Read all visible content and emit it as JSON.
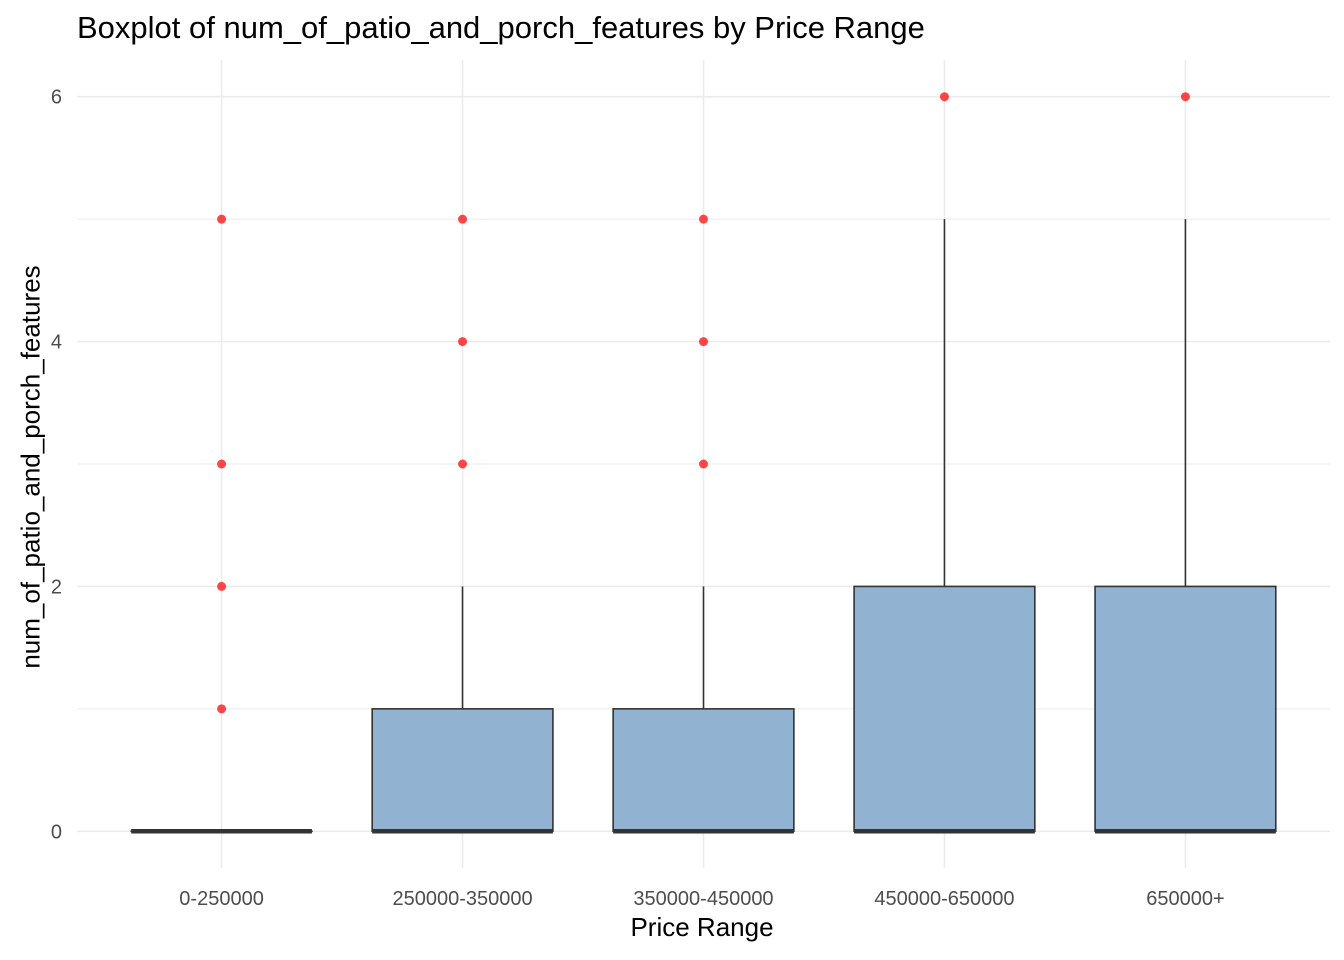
{
  "chart_data": {
    "type": "boxplot",
    "title": "Boxplot of num_of_patio_and_porch_features by Price Range",
    "xlabel": "Price Range",
    "ylabel": "num_of_patio_and_porch_features",
    "categories": [
      "0-250000",
      "250000-350000",
      "350000-450000",
      "450000-650000",
      "650000+"
    ],
    "ylim": [
      -0.3,
      6.3
    ],
    "yticks": [
      0,
      2,
      4,
      6
    ],
    "grid": true,
    "boxes": [
      {
        "category": "0-250000",
        "lower_whisker": 0,
        "q1": 0,
        "median": 0,
        "q3": 0,
        "upper_whisker": 0,
        "outliers": [
          1,
          2,
          3,
          5
        ]
      },
      {
        "category": "250000-350000",
        "lower_whisker": 0,
        "q1": 0,
        "median": 0,
        "q3": 1,
        "upper_whisker": 2,
        "outliers": [
          3,
          4,
          5
        ]
      },
      {
        "category": "350000-450000",
        "lower_whisker": 0,
        "q1": 0,
        "median": 0,
        "q3": 1,
        "upper_whisker": 2,
        "outliers": [
          3,
          4,
          5
        ]
      },
      {
        "category": "450000-650000",
        "lower_whisker": 0,
        "q1": 0,
        "median": 0,
        "q3": 2,
        "upper_whisker": 5,
        "outliers": [
          6
        ]
      },
      {
        "category": "650000+",
        "lower_whisker": 0,
        "q1": 0,
        "median": 0,
        "q3": 2,
        "upper_whisker": 5,
        "outliers": [
          6
        ]
      }
    ],
    "colors": {
      "box_fill": "#91b2d1",
      "box_border": "#333333",
      "outlier": "#ff0000",
      "grid": "#ebebeb"
    }
  }
}
